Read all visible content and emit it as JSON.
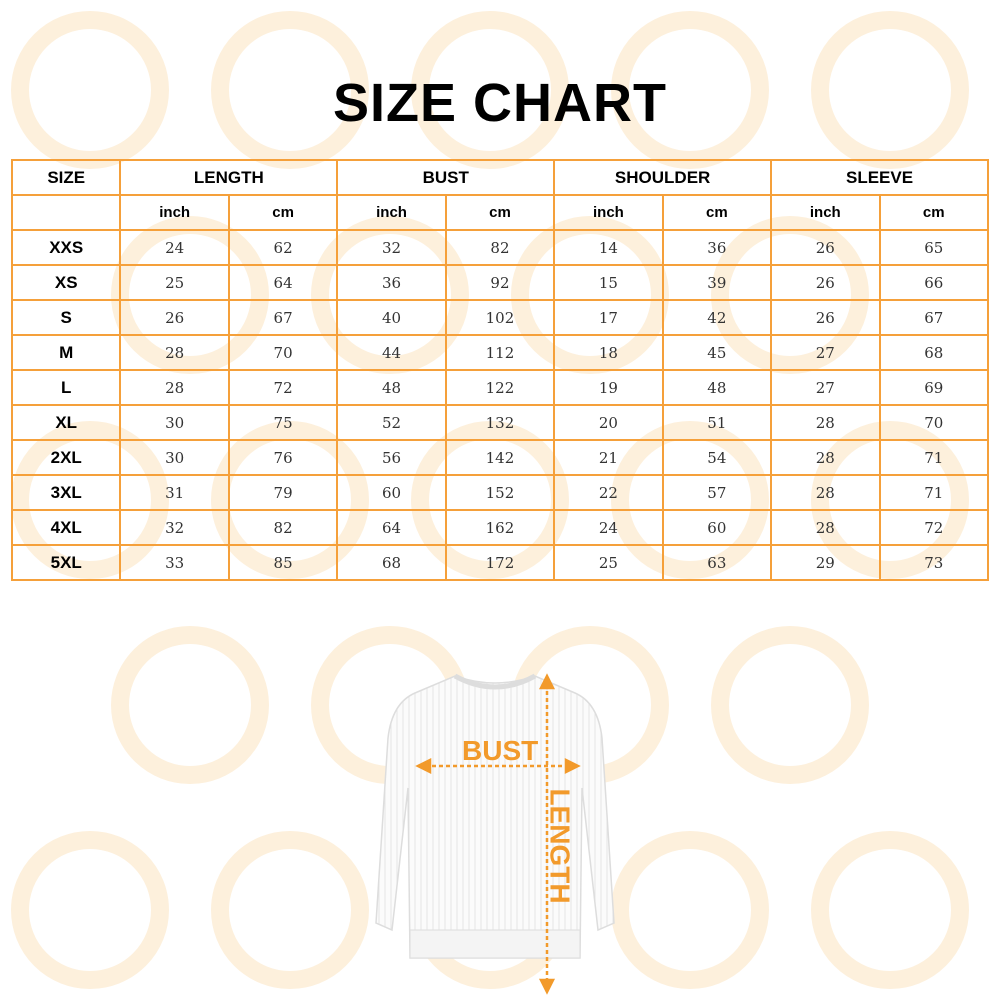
{
  "title": "SIZE CHART",
  "table": {
    "size_header": "SIZE",
    "groups": [
      "LENGTH",
      "BUST",
      "SHOULDER",
      "SLEEVE"
    ],
    "units": [
      "inch",
      "cm"
    ],
    "rows": [
      {
        "size": "XXS",
        "v": [
          "24",
          "62",
          "32",
          "82",
          "14",
          "36",
          "26",
          "65"
        ]
      },
      {
        "size": "XS",
        "v": [
          "25",
          "64",
          "36",
          "92",
          "15",
          "39",
          "26",
          "66"
        ]
      },
      {
        "size": "S",
        "v": [
          "26",
          "67",
          "40",
          "102",
          "17",
          "42",
          "26",
          "67"
        ]
      },
      {
        "size": "M",
        "v": [
          "28",
          "70",
          "44",
          "112",
          "18",
          "45",
          "27",
          "68"
        ]
      },
      {
        "size": "L",
        "v": [
          "28",
          "72",
          "48",
          "122",
          "19",
          "48",
          "27",
          "69"
        ]
      },
      {
        "size": "XL",
        "v": [
          "30",
          "75",
          "52",
          "132",
          "20",
          "51",
          "28",
          "70"
        ]
      },
      {
        "size": "2XL",
        "v": [
          "30",
          "76",
          "56",
          "142",
          "21",
          "54",
          "28",
          "71"
        ]
      },
      {
        "size": "3XL",
        "v": [
          "31",
          "79",
          "60",
          "152",
          "22",
          "57",
          "28",
          "71"
        ]
      },
      {
        "size": "4XL",
        "v": [
          "32",
          "82",
          "64",
          "162",
          "24",
          "60",
          "28",
          "72"
        ]
      },
      {
        "size": "5XL",
        "v": [
          "33",
          "85",
          "68",
          "172",
          "25",
          "63",
          "29",
          "73"
        ]
      }
    ]
  },
  "diagram": {
    "bust_label": "BUST",
    "length_label": "LENGTH"
  },
  "colors": {
    "accent": "#f29a2b",
    "border": "#f5a03a",
    "watermark": "#fdf0dc"
  }
}
